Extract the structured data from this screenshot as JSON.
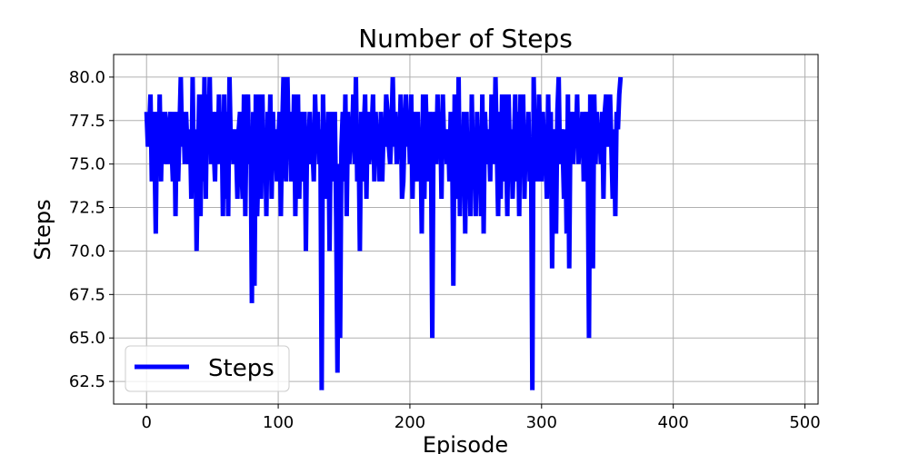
{
  "chart_data": {
    "type": "line",
    "title": "Number of Steps",
    "xlabel": "Episode",
    "ylabel": "Steps",
    "xlim": [
      -25,
      510
    ],
    "ylim": [
      61.2,
      81.3
    ],
    "xticks": [
      0,
      100,
      200,
      300,
      400,
      500
    ],
    "yticks": [
      62.5,
      65.0,
      67.5,
      70.0,
      72.5,
      75.0,
      77.5,
      80.0
    ],
    "grid": true,
    "legend_position": "bottom-left",
    "series": [
      {
        "name": "Steps",
        "color": "#0000ff",
        "values": [
          78,
          76,
          77,
          79,
          74,
          78,
          76,
          71,
          78,
          75,
          79,
          74,
          78,
          75,
          78,
          76,
          75,
          77,
          78,
          76,
          74,
          78,
          72,
          78,
          74,
          77,
          80,
          76,
          78,
          75,
          78,
          76,
          75,
          77,
          73,
          80,
          74,
          77,
          70,
          75,
          79,
          72,
          79,
          74,
          80,
          73,
          79,
          76,
          80,
          75,
          78,
          76,
          74,
          78,
          75,
          79,
          76,
          78,
          72,
          79,
          73,
          78,
          72,
          80,
          76,
          77,
          75,
          77,
          76,
          73,
          77,
          78,
          75,
          73,
          79,
          72,
          78,
          79,
          75,
          77,
          67,
          78,
          68,
          79,
          72,
          75,
          79,
          73,
          79,
          74,
          77,
          72,
          78,
          75,
          79,
          73,
          78,
          75,
          77,
          74,
          76,
          78,
          72,
          77,
          80,
          76,
          74,
          80,
          76,
          78,
          74,
          75,
          79,
          72,
          77,
          79,
          73,
          78,
          74,
          75,
          78,
          70,
          77,
          76,
          78,
          75,
          76,
          74,
          79,
          76,
          78,
          75,
          77,
          62,
          79,
          75,
          76,
          73,
          78,
          70,
          78,
          76,
          74,
          78,
          72,
          63,
          75,
          65,
          76,
          78,
          74,
          79,
          72,
          78,
          75,
          77,
          76,
          79,
          75,
          80,
          74,
          77,
          70,
          78,
          74,
          77,
          79,
          73,
          78,
          75,
          76,
          77,
          79,
          74,
          78,
          76,
          77,
          74,
          78,
          74,
          77,
          76,
          79,
          78,
          76,
          75,
          77,
          80,
          76,
          78,
          75,
          77,
          76,
          79,
          73,
          74,
          77,
          79,
          76,
          78,
          75,
          79,
          73,
          78,
          75,
          74,
          78,
          75,
          77,
          71,
          79,
          73,
          79,
          76,
          74,
          78,
          76,
          65,
          78,
          77,
          75,
          79,
          76,
          78,
          73,
          79,
          76,
          77,
          75,
          77,
          74,
          78,
          77,
          68,
          79,
          75,
          73,
          80,
          72,
          77,
          74,
          78,
          71,
          78,
          73,
          76,
          72,
          79,
          74,
          77,
          72,
          78,
          75,
          76,
          72,
          79,
          71,
          78,
          76,
          75,
          77,
          74,
          79,
          77,
          75,
          80,
          76,
          72,
          78,
          73,
          79,
          74,
          79,
          76,
          72,
          79,
          75,
          77,
          73,
          76,
          79,
          74,
          78,
          72,
          79,
          76,
          79,
          73,
          77,
          75,
          78,
          74,
          76,
          62,
          80,
          75,
          78,
          74,
          79,
          76,
          74,
          78,
          75,
          76,
          73,
          79,
          74,
          78,
          69,
          77,
          76,
          71,
          78,
          80,
          75,
          77,
          76,
          73,
          77,
          71,
          79,
          69,
          78,
          77,
          75,
          78,
          76,
          79,
          75,
          77,
          76,
          78,
          74,
          77,
          78,
          76,
          65,
          79,
          77,
          69,
          79,
          75,
          78,
          76,
          77,
          75,
          78,
          73,
          78,
          79,
          77,
          76,
          79,
          76,
          73,
          77,
          72,
          78,
          77,
          79,
          80
        ]
      }
    ]
  }
}
